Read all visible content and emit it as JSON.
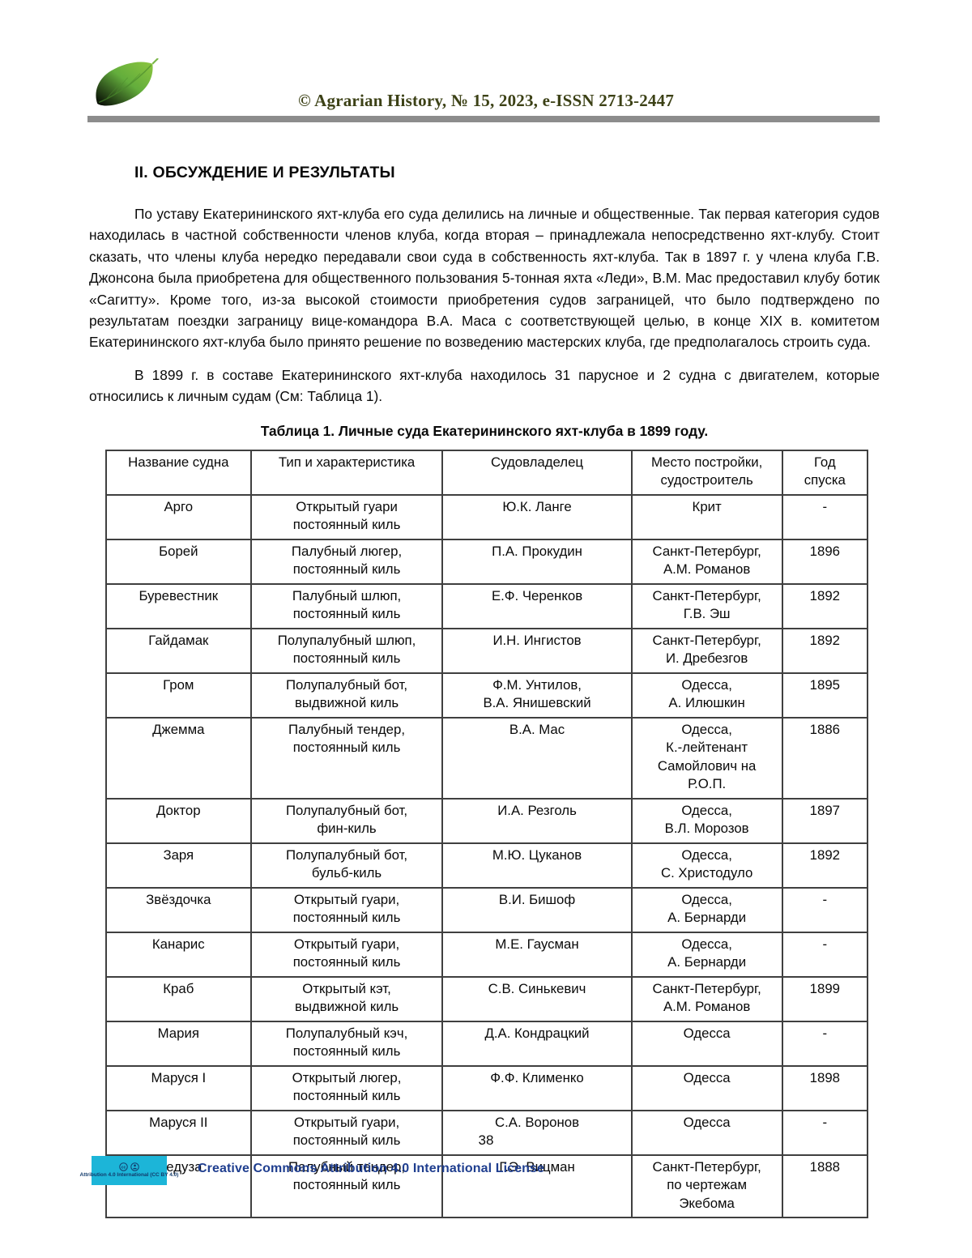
{
  "header": {
    "journal_line": "© Agrarian History, № 15, 2023, e-ISSN 2713-2447"
  },
  "section": {
    "heading": "II. ОБСУЖДЕНИЕ И РЕЗУЛЬТАТЫ"
  },
  "paragraphs": [
    "По уставу Екатерининского яхт-клуба его суда делились на личные и общественные. Так первая категория судов находилась в частной собственности членов клуба, когда вторая – принадлежала непосредственно яхт-клубу. Стоит сказать, что члены клуба нередко передавали свои суда в собственность яхт-клуба. Так в 1897 г. у члена клуба Г.В. Джонсона была приобретена для общественного пользования 5-тонная яхта «Леди», В.М. Мас предоставил клубу ботик «Сагитту». Кроме того, из-за высокой стоимости приобретения судов заграницей, что было подтверждено по результатам поездки заграницу вице-командора В.А. Маса с соответствующей целью, в конце XIX в. комитетом Екатерининского яхт-клуба было принято решение по возведению мастерских клуба, где предполагалось строить суда.",
    "В 1899 г. в составе Екатерининского яхт-клуба находилось 31 парусное и 2 судна с двигателем, которые относились к личным судам (См: Таблица 1)."
  ],
  "table": {
    "title": "Таблица 1. Личные суда Екатерининского яхт-клуба в 1899 году.",
    "columns": [
      "Название судна",
      "Тип и характеристика",
      "Судовладелец",
      "Место постройки,\nсудостроитель",
      "Год\nспуска"
    ],
    "rows": [
      [
        "Арго",
        "Открытый гуари\nпостоянный киль",
        "Ю.К. Ланге",
        "Крит",
        "-"
      ],
      [
        "Борей",
        "Палубный люгер,\nпостоянный киль",
        "П.А. Прокудин",
        "Санкт-Петербург,\nА.М. Романов",
        "1896"
      ],
      [
        "Буревестник",
        "Палубный шлюп,\nпостоянный киль",
        "Е.Ф. Черенков",
        "Санкт-Петербург,\nГ.В. Эш",
        "1892"
      ],
      [
        "Гайдамак",
        "Полупалубный шлюп,\nпостоянный киль",
        "И.Н. Ингистов",
        "Санкт-Петербург,\nИ. Дребезгов",
        "1892"
      ],
      [
        "Гром",
        "Полупалубный бот,\nвыдвижной киль",
        "Ф.М. Унтилов,\nВ.А. Янишевский",
        "Одесса,\nА. Илюшкин",
        "1895"
      ],
      [
        "Джемма",
        "Палубный тендер,\nпостоянный киль",
        "В.А. Мас",
        "Одесса,\nК.-лейтенант\nСамойлович на\nР.О.П.",
        "1886"
      ],
      [
        "Доктор",
        "Полупалубный бот,\nфин-киль",
        "И.А. Резголь",
        "Одесса,\nВ.Л. Морозов",
        "1897"
      ],
      [
        "Заря",
        "Полупалубный бот,\nбульб-киль",
        "М.Ю. Цуканов",
        "Одесса,\nС. Христодуло",
        "1892"
      ],
      [
        "Звёздочка",
        "Открытый гуари,\nпостоянный киль",
        "В.И. Бишоф",
        "Одесса,\nА. Бернарди",
        "-"
      ],
      [
        "Канарис",
        "Открытый гуари,\nпостоянный киль",
        "М.Е. Гаусман",
        "Одесса,\nА. Бернарди",
        "-"
      ],
      [
        "Краб",
        "Открытый кэт,\nвыдвижной киль",
        "С.В. Синькевич",
        "Санкт-Петербург,\nА.М. Романов",
        "1899"
      ],
      [
        "Мария",
        "Полупалубный кэч,\nпостоянный киль",
        "Д.А. Кондрацкий",
        "Одесса",
        "-"
      ],
      [
        "Маруся I",
        "Открытый люгер,\nпостоянный киль",
        "Ф.Ф. Клименко",
        "Одесса",
        "1898"
      ],
      [
        "Маруся II",
        "Открытый гуари,\nпостоянный киль",
        "С.А. Воронов",
        "Одесса",
        "-"
      ],
      [
        "Медуза",
        "Палубный тендер,\nпостоянный киль",
        "Г.Э. Вицман",
        "Санкт-Петербург,\nпо чертежам\nЭкебома",
        "1888"
      ]
    ]
  },
  "footer": {
    "page_number": "38",
    "badge_text": "Attribution 4.0 International (CC BY 4.0)",
    "license_text": "Creative Commons Attribution 4.0 International License"
  },
  "icons": {
    "leaf": "leaf-logo",
    "cc": "cc-circle-icon",
    "by": "by-person-icon"
  },
  "colors": {
    "journal_text": "#3c4116",
    "header_rule": "#8c8c8c",
    "table_border": "#3f3f3f",
    "badge_cyan": "#1cb5d8",
    "badge_text": "#123a6b",
    "license_blue": "#1f3e8f",
    "leaf_green": "#5aa838"
  }
}
